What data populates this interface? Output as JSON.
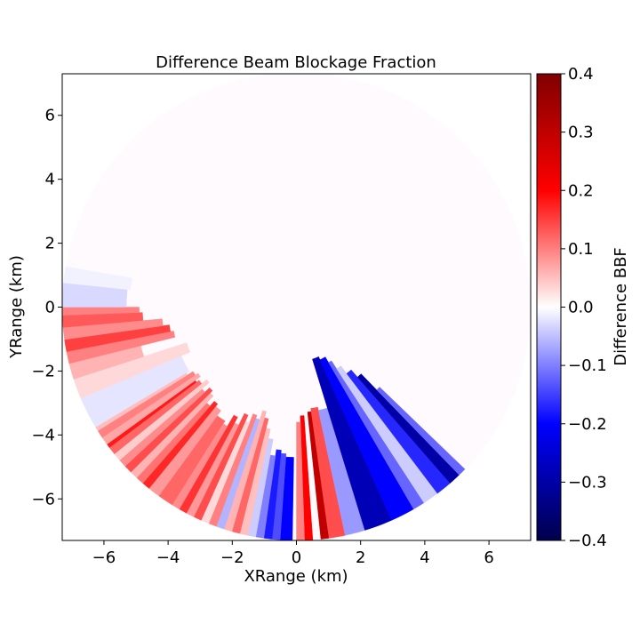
{
  "chart_data": {
    "type": "heatmap",
    "plot_kind": "polar-ppi",
    "title": "Difference Beam Blockage Fraction",
    "xlabel": "XRange (km)",
    "ylabel": "YRange (km)",
    "xlim": [
      -7.3,
      7.3
    ],
    "ylim": [
      -7.3,
      7.3
    ],
    "x_ticks": [
      -6,
      -4,
      -2,
      0,
      2,
      4,
      6
    ],
    "y_ticks": [
      -6,
      -4,
      -2,
      0,
      2,
      4,
      6
    ],
    "x_tick_labels": [
      "−6",
      "−4",
      "−2",
      "0",
      "2",
      "4",
      "6"
    ],
    "y_tick_labels": [
      "−6",
      "−4",
      "−2",
      "0",
      "2",
      "4",
      "6"
    ],
    "grid": false,
    "max_range_km": 7.3,
    "colormap": "seismic",
    "colorbar": {
      "label": "Difference BBF",
      "vmin": -0.4,
      "vmax": 0.4,
      "ticks": [
        0.4,
        0.3,
        0.2,
        0.1,
        0.0,
        -0.1,
        -0.2,
        -0.3,
        -0.4
      ],
      "tick_labels": [
        "0.4",
        "0.3",
        "0.2",
        "0.1",
        "0.0",
        "−0.1",
        "−0.2",
        "−0.3",
        "−0.4"
      ]
    },
    "sectors": [
      {
        "az_start": 239,
        "az_end": 247,
        "r_start": 3.9,
        "r_end": 7.3,
        "value": -0.02
      },
      {
        "az_start": 247,
        "az_end": 252,
        "r_start": 3.6,
        "r_end": 7.3,
        "value": 0.03
      },
      {
        "az_start": 252,
        "az_end": 256,
        "r_start": 5.0,
        "r_end": 7.3,
        "value": 0.06
      },
      {
        "az_start": 256,
        "az_end": 259,
        "r_start": 3.9,
        "r_end": 7.3,
        "value": 0.1
      },
      {
        "az_start": 259,
        "az_end": 262,
        "r_start": 4.0,
        "r_end": 7.3,
        "value": 0.15
      },
      {
        "az_start": 262,
        "az_end": 265,
        "r_start": 4.2,
        "r_end": 7.3,
        "value": 0.09
      },
      {
        "az_start": 265,
        "az_end": 268,
        "r_start": 4.8,
        "r_end": 7.3,
        "value": 0.13
      },
      {
        "az_start": 268,
        "az_end": 270,
        "r_start": 4.9,
        "r_end": 7.3,
        "value": 0.1
      },
      {
        "az_start": 270,
        "az_end": 276,
        "r_start": 5.3,
        "r_end": 7.3,
        "value": -0.03
      },
      {
        "az_start": 276,
        "az_end": 280,
        "r_start": 5.2,
        "r_end": 7.3,
        "value": -0.01
      },
      {
        "az_start": 212,
        "az_end": 216,
        "r_start": 4.2,
        "r_end": 7.3,
        "value": 0.12
      },
      {
        "az_start": 216,
        "az_end": 219,
        "r_start": 4.0,
        "r_end": 7.3,
        "value": 0.08
      },
      {
        "az_start": 219,
        "az_end": 221,
        "r_start": 3.9,
        "r_end": 7.3,
        "value": 0.17
      },
      {
        "az_start": 221,
        "az_end": 223,
        "r_start": 4.1,
        "r_end": 7.3,
        "value": 0.11
      },
      {
        "az_start": 223,
        "az_end": 225,
        "r_start": 3.8,
        "r_end": 7.3,
        "value": 0.06
      },
      {
        "az_start": 225,
        "az_end": 227,
        "r_start": 3.7,
        "r_end": 7.3,
        "value": 0.14
      },
      {
        "az_start": 227,
        "az_end": 229,
        "r_start": 3.9,
        "r_end": 7.3,
        "value": 0.09
      },
      {
        "az_start": 229,
        "az_end": 231,
        "r_start": 3.6,
        "r_end": 7.3,
        "value": 0.04
      },
      {
        "az_start": 231,
        "az_end": 233,
        "r_start": 3.8,
        "r_end": 7.3,
        "value": 0.12
      },
      {
        "az_start": 233,
        "az_end": 234,
        "r_start": 3.9,
        "r_end": 7.3,
        "value": 0.18
      },
      {
        "az_start": 234,
        "az_end": 236,
        "r_start": 3.7,
        "r_end": 7.3,
        "value": 0.07
      },
      {
        "az_start": 236,
        "az_end": 238,
        "r_start": 3.8,
        "r_end": 7.3,
        "value": 0.1
      },
      {
        "az_start": 238,
        "az_end": 239,
        "r_start": 4.0,
        "r_end": 7.3,
        "value": 0.05
      },
      {
        "az_start": 181,
        "az_end": 184,
        "r_start": 4.7,
        "r_end": 7.3,
        "value": -0.2
      },
      {
        "az_start": 184,
        "az_end": 186,
        "r_start": 4.6,
        "r_end": 7.3,
        "value": -0.14
      },
      {
        "az_start": 186,
        "az_end": 188,
        "r_start": 4.5,
        "r_end": 7.3,
        "value": -0.18
      },
      {
        "az_start": 188,
        "az_end": 190,
        "r_start": 4.7,
        "r_end": 7.3,
        "value": -0.1
      },
      {
        "az_start": 190,
        "az_end": 192,
        "r_start": 4.2,
        "r_end": 7.3,
        "value": -0.04
      },
      {
        "az_start": 192,
        "az_end": 194,
        "r_start": 3.9,
        "r_end": 7.3,
        "value": 0.05
      },
      {
        "az_start": 194,
        "az_end": 196,
        "r_start": 3.6,
        "r_end": 7.3,
        "value": 0.12
      },
      {
        "az_start": 196,
        "az_end": 198,
        "r_start": 3.4,
        "r_end": 7.3,
        "value": 0.06
      },
      {
        "az_start": 198,
        "az_end": 200,
        "r_start": 3.7,
        "r_end": 7.3,
        "value": -0.06
      },
      {
        "az_start": 200,
        "az_end": 202,
        "r_start": 3.6,
        "r_end": 7.3,
        "value": 0.1
      },
      {
        "az_start": 202,
        "az_end": 204,
        "r_start": 3.9,
        "r_end": 7.3,
        "value": 0.03
      },
      {
        "az_start": 204,
        "az_end": 206,
        "r_start": 3.7,
        "r_end": 7.3,
        "value": 0.14
      },
      {
        "az_start": 206,
        "az_end": 208,
        "r_start": 4.1,
        "r_end": 7.3,
        "value": 0.08
      },
      {
        "az_start": 208,
        "az_end": 210,
        "r_start": 3.9,
        "r_end": 7.3,
        "value": 0.16
      },
      {
        "az_start": 210,
        "az_end": 212,
        "r_start": 4.3,
        "r_end": 7.3,
        "value": 0.09
      },
      {
        "az_start": 176,
        "az_end": 178,
        "r_start": 3.4,
        "r_end": 7.3,
        "value": 0.2
      },
      {
        "az_start": 178,
        "az_end": 180,
        "r_start": 3.6,
        "r_end": 7.3,
        "value": 0.1
      },
      {
        "az_start": 172,
        "az_end": 174,
        "r_start": 3.3,
        "r_end": 7.3,
        "value": 0.3
      },
      {
        "az_start": 168,
        "az_end": 172,
        "r_start": 3.2,
        "r_end": 7.3,
        "value": 0.14
      },
      {
        "az_start": 163,
        "az_end": 168,
        "r_start": 3.3,
        "r_end": 7.3,
        "value": -0.08
      },
      {
        "az_start": 156,
        "az_end": 163,
        "r_start": 1.7,
        "r_end": 7.3,
        "value": -0.28
      },
      {
        "az_start": 150,
        "az_end": 156,
        "r_start": 1.8,
        "r_end": 7.3,
        "value": -0.2
      },
      {
        "az_start": 147,
        "az_end": 150,
        "r_start": 2.0,
        "r_end": 7.3,
        "value": -0.12
      },
      {
        "az_start": 143,
        "az_end": 147,
        "r_start": 2.3,
        "r_end": 7.3,
        "value": -0.04
      },
      {
        "az_start": 139,
        "az_end": 143,
        "r_start": 2.6,
        "r_end": 7.3,
        "value": -0.17
      },
      {
        "az_start": 136,
        "az_end": 139,
        "r_start": 2.9,
        "r_end": 7.3,
        "value": -0.3
      },
      {
        "az_start": 134,
        "az_end": 136,
        "r_start": 3.6,
        "r_end": 7.3,
        "value": -0.12
      }
    ]
  }
}
